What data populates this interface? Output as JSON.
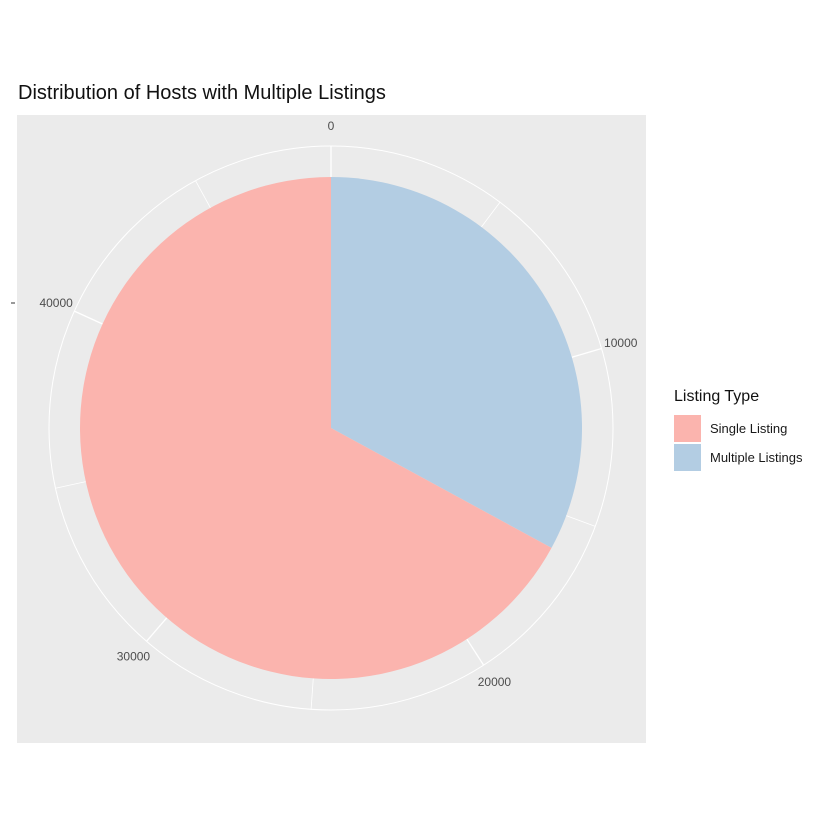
{
  "chart_data": {
    "type": "pie",
    "title": "Distribution of Hosts with Multiple Listings",
    "ylabel": "",
    "xlabel": "",
    "legend": {
      "title": "Listing Type",
      "placement": "right"
    },
    "slices": [
      {
        "label": "Single Listing",
        "value": 32800,
        "color": "#FBB4AE"
      },
      {
        "label": "Multiple Listings",
        "value": 16100,
        "color": "#B3CDE3"
      }
    ],
    "total": 48900,
    "angular_ticks": [
      "0",
      "10000",
      "20000",
      "30000",
      "40000"
    ],
    "tick_values": [
      0,
      10000,
      20000,
      30000,
      40000
    ],
    "stacking_order": [
      "Multiple Listings",
      "Single Listing"
    ],
    "background_color": "#EBEBEB",
    "grid": true
  }
}
